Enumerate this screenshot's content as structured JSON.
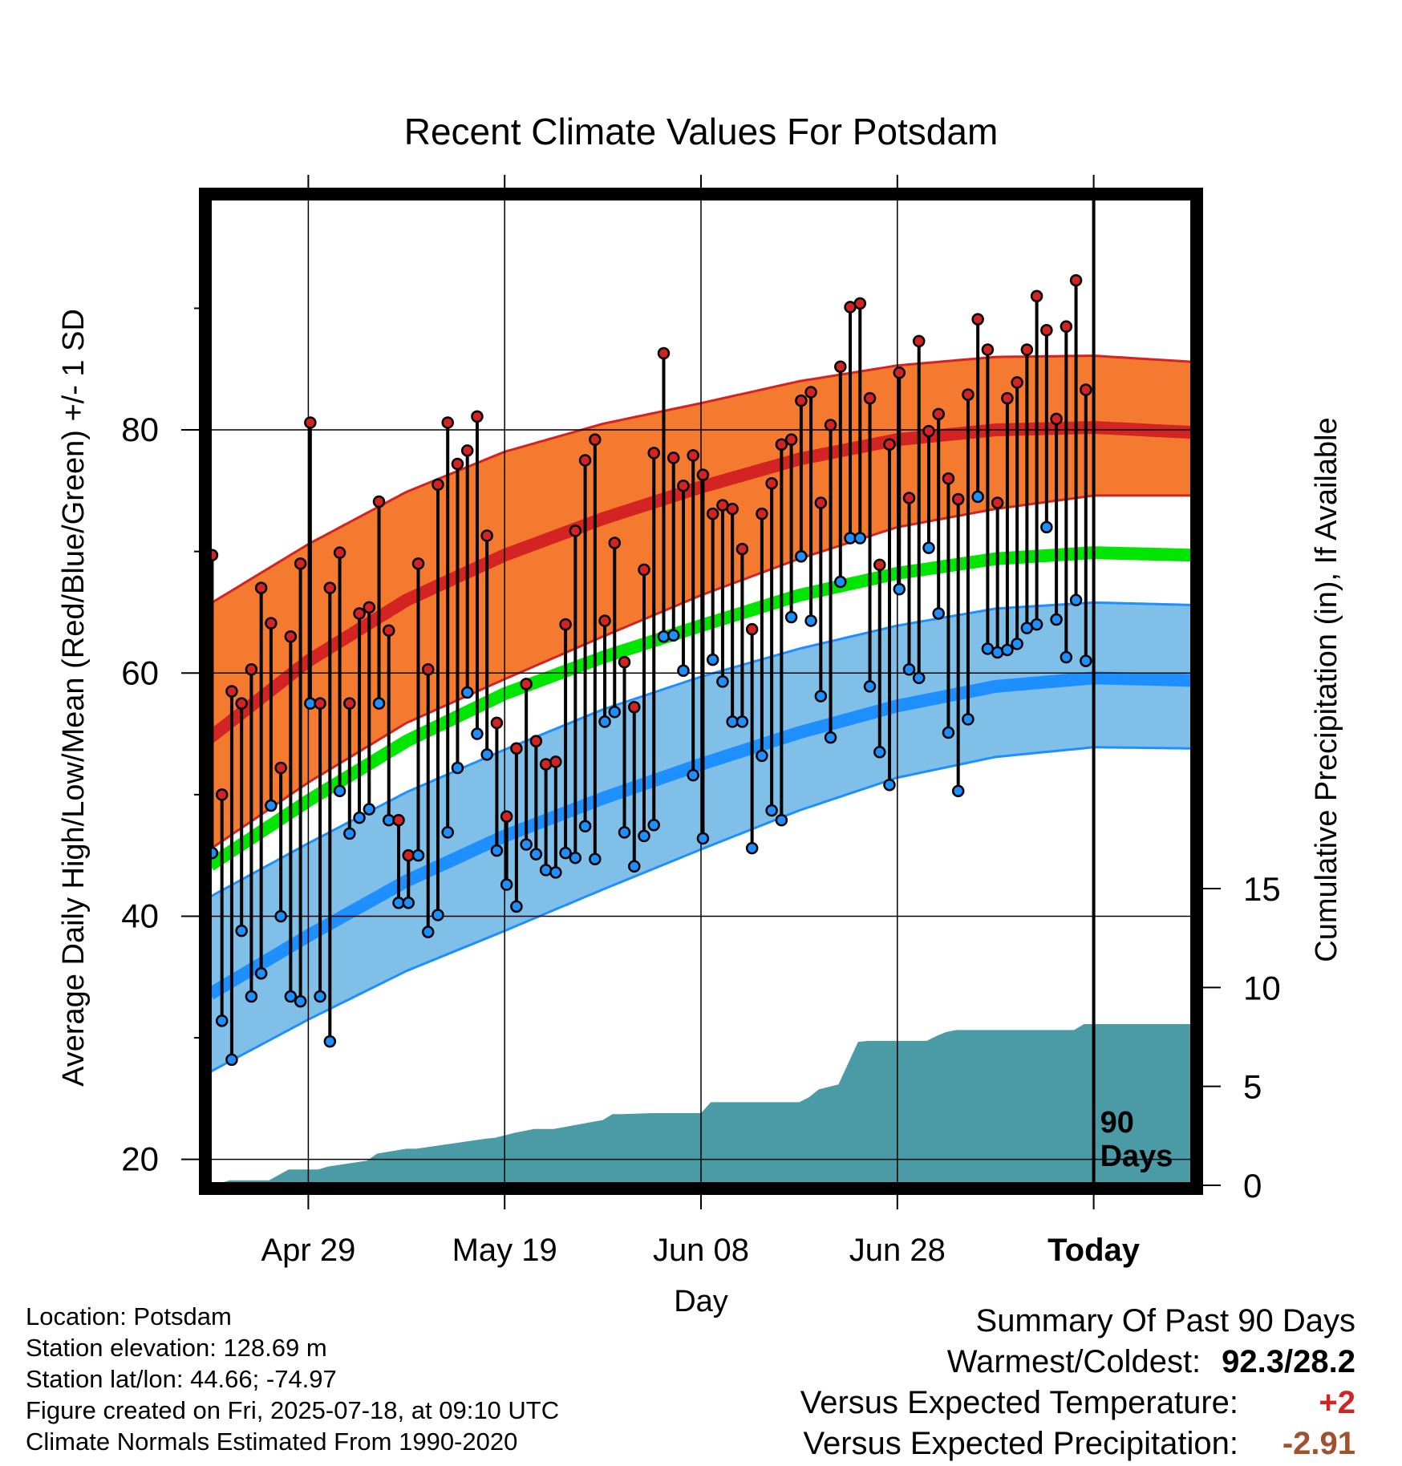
{
  "chart_data": {
    "type": "line",
    "title": "Recent Climate Values For Potsdam",
    "xlabel": "Day",
    "ylabel": "Average Daily High/Low/Mean (Red/Blue/Green) +/- 1 SD",
    "y2label": "Cumulative Precipitation (in), If Available",
    "x_tick_labels": [
      "Apr 29",
      "May 19",
      "Jun 08",
      "Jun 28",
      "Today"
    ],
    "x_tick_days": [
      10,
      30,
      50,
      70,
      90
    ],
    "x_range_days": [
      0,
      100
    ],
    "y_ticks": [
      20,
      40,
      60,
      80
    ],
    "y_range": [
      18,
      99
    ],
    "y2_ticks": [
      0,
      5,
      10,
      15
    ],
    "y2_range": [
      0,
      15
    ],
    "today_marker_label": "90\nDays",
    "grid": true,
    "colors": {
      "high": "#d42323",
      "high_band": "#f47a30",
      "low": "#1e8fff",
      "low_band": "#80c0e8",
      "mean": "#00e600",
      "precip": "#4a9ba5"
    },
    "normals": {
      "day": [
        0,
        10,
        20,
        30,
        40,
        50,
        60,
        70,
        80,
        90,
        100
      ],
      "high_mean": [
        54.7,
        61.0,
        66.0,
        69.7,
        72.7,
        75.3,
        77.6,
        79.2,
        80.0,
        80.2,
        79.8
      ],
      "high_upper": [
        65.7,
        70.6,
        74.9,
        78.2,
        80.5,
        82.2,
        84.0,
        85.3,
        86.0,
        86.1,
        85.6
      ],
      "high_lower": [
        45.5,
        51.0,
        55.9,
        59.5,
        63.0,
        66.4,
        69.4,
        72.0,
        73.5,
        74.6,
        74.6
      ],
      "mean": [
        44.2,
        49.5,
        54.4,
        58.3,
        61.3,
        63.9,
        66.4,
        68.2,
        69.4,
        69.9,
        69.7
      ],
      "low_mean": [
        33.6,
        38.4,
        42.9,
        46.6,
        49.7,
        52.5,
        55.1,
        57.3,
        58.9,
        59.6,
        59.4
      ],
      "low_upper": [
        41.6,
        46.0,
        50.2,
        53.7,
        57.0,
        59.7,
        62.0,
        63.9,
        65.3,
        65.8,
        65.6
      ],
      "low_lower": [
        27.2,
        31.5,
        35.5,
        38.8,
        42.2,
        45.5,
        48.7,
        51.4,
        53.1,
        53.9,
        53.8
      ]
    },
    "observed": {
      "day_start": 0,
      "high": [
        69.7,
        50.0,
        58.5,
        57.5,
        60.3,
        67.0,
        64.1,
        52.2,
        63.0,
        69.0,
        80.6,
        57.5,
        67.0,
        69.9,
        57.5,
        64.9,
        65.4,
        74.1,
        63.5,
        47.9,
        45.0,
        69.0,
        60.3,
        75.5,
        80.6,
        77.2,
        78.3,
        81.1,
        71.3,
        55.9,
        48.2,
        53.8,
        59.1,
        54.4,
        52.5,
        52.7,
        64.0,
        71.7,
        77.5,
        79.2,
        64.3,
        70.7,
        60.9,
        57.2,
        68.5,
        78.1,
        86.3,
        77.7,
        75.4,
        77.9,
        76.3,
        73.1,
        73.8,
        73.5,
        70.2,
        63.6,
        73.1,
        75.6,
        78.8,
        79.2,
        82.4,
        83.1,
        74.0,
        80.4,
        85.2,
        90.1,
        90.4,
        82.6,
        68.9,
        78.8,
        84.7,
        74.4,
        87.3,
        79.9,
        81.3,
        76.0,
        74.3,
        82.9,
        89.1,
        86.6,
        74.0,
        82.6,
        83.9,
        86.6,
        91.0,
        88.2,
        80.9,
        88.5,
        92.3,
        83.3
      ],
      "low": [
        45.2,
        31.4,
        28.2,
        38.8,
        33.4,
        35.3,
        49.1,
        40.0,
        33.4,
        33.0,
        57.5,
        33.4,
        29.7,
        50.3,
        46.8,
        48.1,
        48.8,
        57.5,
        47.9,
        41.1,
        41.1,
        45.0,
        38.7,
        40.1,
        46.9,
        52.2,
        58.4,
        55.0,
        53.3,
        45.4,
        42.6,
        40.8,
        45.9,
        45.1,
        43.8,
        43.6,
        45.2,
        44.8,
        47.4,
        44.7,
        56.0,
        56.8,
        46.9,
        44.1,
        46.6,
        47.5,
        63.0,
        63.1,
        60.2,
        51.6,
        46.4,
        61.1,
        59.3,
        56.0,
        56.0,
        45.6,
        53.2,
        48.7,
        47.9,
        64.6,
        69.6,
        64.3,
        58.1,
        54.7,
        67.5,
        71.1,
        71.1,
        58.9,
        53.5,
        50.8,
        66.9,
        60.3,
        59.6,
        70.3,
        64.9,
        55.1,
        50.3,
        56.2,
        74.5,
        62.0,
        61.7,
        61.9,
        62.4,
        63.7,
        64.0,
        72.0,
        64.4,
        61.3,
        66.0,
        61.0
      ]
    },
    "precipitation": {
      "day": [
        0,
        1,
        2,
        6,
        8,
        11,
        12,
        16,
        17,
        20,
        21,
        28,
        29,
        31,
        33,
        35,
        40,
        41,
        42,
        45,
        50,
        51,
        52,
        60,
        61,
        62,
        64,
        66,
        67,
        73,
        74,
        75,
        76,
        88,
        89,
        90,
        100
      ],
      "cumulative": [
        0.0,
        0.1,
        0.25,
        0.25,
        0.8,
        0.8,
        0.95,
        1.25,
        1.6,
        1.85,
        1.85,
        2.35,
        2.4,
        2.65,
        2.85,
        2.85,
        3.3,
        3.6,
        3.6,
        3.65,
        3.65,
        4.2,
        4.2,
        4.2,
        4.45,
        4.85,
        5.1,
        7.25,
        7.3,
        7.3,
        7.55,
        7.75,
        7.85,
        7.85,
        8.15,
        8.15,
        8.15
      ]
    }
  },
  "info": {
    "location": "Location: Potsdam",
    "elevation": "Station elevation: 128.69 m",
    "latlon": "Station lat/lon: 44.66; -74.97",
    "created": "Figure created on Fri, 2025-07-18, at 09:10 UTC",
    "normals": "Climate Normals Estimated From 1990-2020"
  },
  "summary": {
    "title": "Summary Of Past 90 Days",
    "warmest_coldest_label": "Warmest/Coldest:",
    "warmest_coldest_value": "92.3/28.2",
    "temp_label": "Versus Expected Temperature:",
    "temp_value": "+2",
    "precip_label": "Versus Expected Precipitation:",
    "precip_value": "-2.91"
  }
}
